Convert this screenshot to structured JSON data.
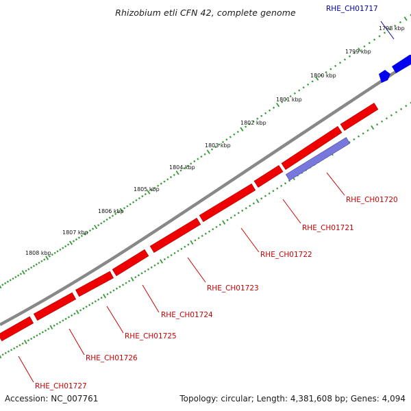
{
  "title": "Rhizobium etli CFN 42, complete genome",
  "accession": "Accession: NC_007761",
  "summary": "Topology: circular; Length: 4,381,608 bp; Genes: 4,094",
  "colors": {
    "forward_gene": "#ee0000",
    "reverse_gene": "#0000ee",
    "gc_feature": "#7777dd",
    "backbone": "#888888",
    "tick": "#339933",
    "label_red": "#cc0000",
    "label_blue": "#0000aa"
  },
  "ruler": [
    {
      "label": "1798 kbp"
    },
    {
      "label": "1799 kbp"
    },
    {
      "label": "1800 kbp"
    },
    {
      "label": "1801 kbp"
    },
    {
      "label": "1802 kbp"
    },
    {
      "label": "1803 kbp"
    },
    {
      "label": "1804 kbp"
    },
    {
      "label": "1805 kbp"
    },
    {
      "label": "1806 kbp"
    },
    {
      "label": "1807 kbp"
    },
    {
      "label": "1808 kbp"
    }
  ],
  "genes": [
    {
      "name": "RHE_CH01717"
    },
    {
      "name": "RHE_CH01720"
    },
    {
      "name": "RHE_CH01721"
    },
    {
      "name": "RHE_CH01722"
    },
    {
      "name": "RHE_CH01723"
    },
    {
      "name": "RHE_CH01724"
    },
    {
      "name": "RHE_CH01725"
    },
    {
      "name": "RHE_CH01726"
    },
    {
      "name": "RHE_CH01727"
    }
  ]
}
